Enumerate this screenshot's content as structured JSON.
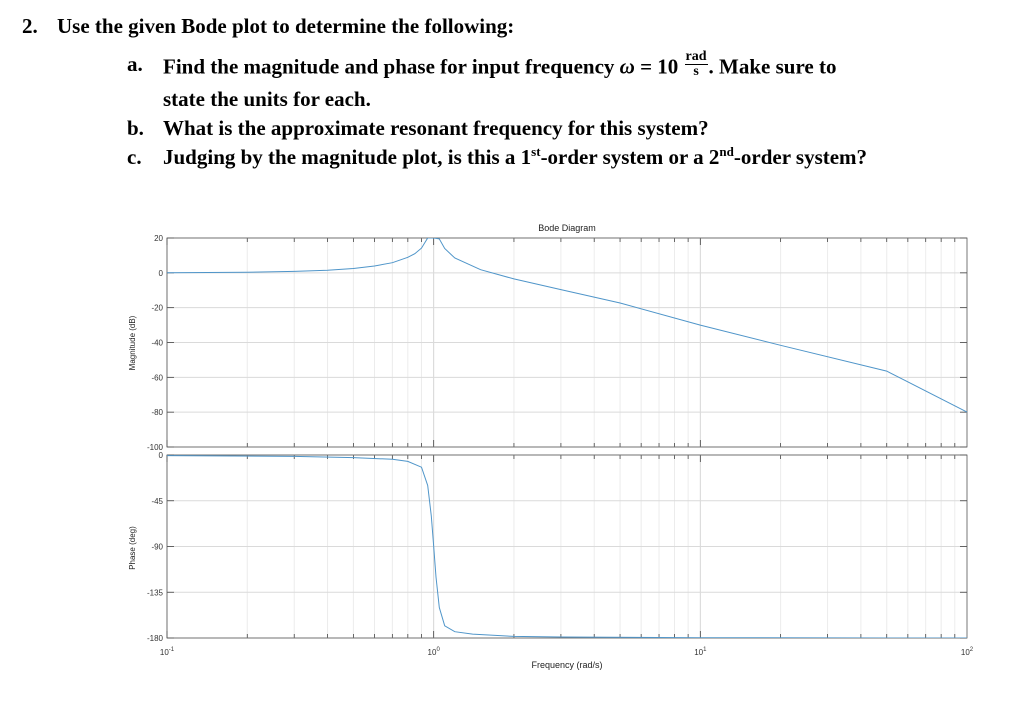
{
  "question": {
    "number": "2.",
    "stem": "Use the given Bode plot to determine the following:",
    "part_a": {
      "letter": "a.",
      "text_before": "Find the magnitude and phase for input frequency",
      "omega": "ω",
      "equals": "= 10",
      "unit_num": "rad",
      "unit_den": "s",
      "text_after": ". Make sure to",
      "line2": "state the units for each."
    },
    "part_b": {
      "letter": "b.",
      "text": "What is the approximate resonant frequency for this system?"
    },
    "part_c": {
      "letter": "c.",
      "text_1": "Judging by the magnitude plot, is this a 1",
      "sup_1": "st",
      "text_2": "-order system or a 2",
      "sup_2": "nd",
      "text_3": "-order system?"
    }
  },
  "chart_data": {
    "type": "line",
    "title": "Bode Diagram",
    "xlabel": "Frequency  (rad/s)",
    "xscale": "log",
    "xlim": [
      0.1,
      100
    ],
    "x_tick_labels": [
      {
        "base": "10",
        "exp": "-1"
      },
      {
        "base": "10",
        "exp": "0"
      },
      {
        "base": "10",
        "exp": "1"
      },
      {
        "base": "10",
        "exp": "2"
      }
    ],
    "grid": true,
    "line_color": "#4f95c9",
    "magnitude": {
      "ylabel": "Magnitude (dB)",
      "ylim": [
        -100,
        20
      ],
      "y_ticks": [
        "20",
        "0",
        "-20",
        "-40",
        "-60",
        "-80",
        "-100"
      ],
      "x": [
        0.1,
        0.2,
        0.3,
        0.4,
        0.5,
        0.6,
        0.7,
        0.8,
        0.85,
        0.9,
        0.95,
        1.0,
        1.05,
        1.1,
        1.2,
        1.5,
        2,
        3,
        5,
        10,
        20,
        50,
        100
      ],
      "y": [
        0.1,
        0.3,
        0.8,
        1.5,
        2.5,
        3.9,
        5.8,
        8.9,
        11.0,
        14.2,
        20.0,
        20.0,
        19.5,
        14.0,
        8.5,
        1.8,
        -3.5,
        -9.6,
        -17.3,
        -30.0,
        -41.6,
        -56.4,
        -79.9
      ]
    },
    "phase": {
      "ylabel": "Phase (deg)",
      "ylim": [
        -180,
        0
      ],
      "y_ticks": [
        "0",
        "-45",
        "-90",
        "-135",
        "-180"
      ],
      "x": [
        0.1,
        0.3,
        0.5,
        0.7,
        0.8,
        0.9,
        0.95,
        0.98,
        1.0,
        1.02,
        1.05,
        1.1,
        1.2,
        1.4,
        2,
        3,
        10,
        30,
        100
      ],
      "y": [
        -0.6,
        -1.4,
        -2.6,
        -4.2,
        -6.3,
        -12.0,
        -30.0,
        -60.0,
        -90.0,
        -120.0,
        -150.0,
        -168.0,
        -173.8,
        -176.2,
        -178.4,
        -179.0,
        -179.7,
        -179.9,
        -180.0
      ]
    }
  }
}
